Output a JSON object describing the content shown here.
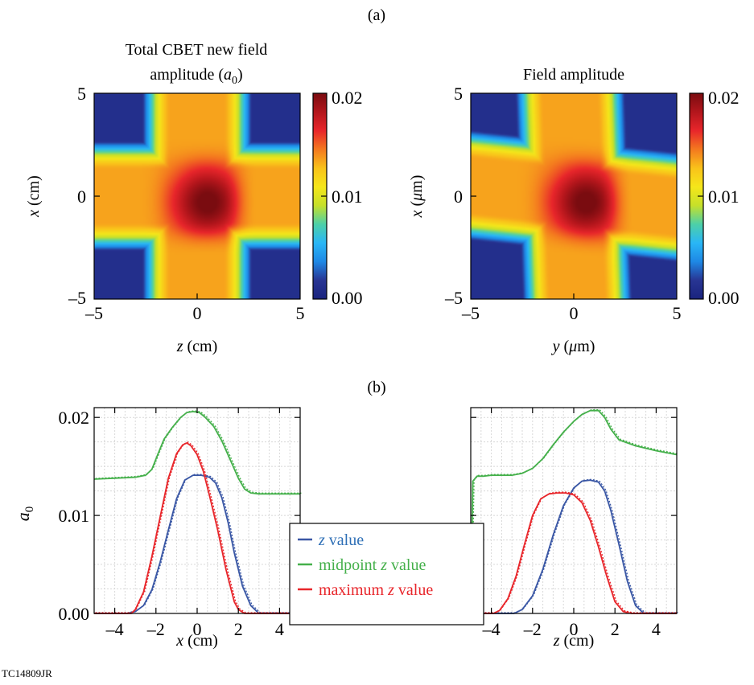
{
  "labels": {
    "part_a": "(a)",
    "part_b": "(b)",
    "figure_id": "TC14809JR"
  },
  "colors": {
    "blue": "#3a57a5",
    "green": "#45b04b",
    "red": "#e8262b",
    "legend_blue_text": "#2e6fb6"
  },
  "colormap": [
    "#1a237e",
    "#283593",
    "#1e88e5",
    "#29b6f6",
    "#4dd0a8",
    "#c6e02a",
    "#f5e61a",
    "#f9c21a",
    "#f4791f",
    "#e8262b",
    "#b3161c",
    "#7a0c10"
  ],
  "chart_data": [
    {
      "type": "heatmap",
      "title_line1": "Total CBET new field",
      "title_line2": "amplitude (",
      "title_var": "a",
      "title_sub": "0",
      "title_end": ")",
      "xlabel_var": "z",
      "xlabel_unit": " (cm)",
      "ylabel_var": "x",
      "ylabel_unit": " (cm)",
      "xlim": [
        -5,
        5
      ],
      "ylim": [
        -5,
        5
      ],
      "xticks": [
        "–5",
        "0",
        "5"
      ],
      "yticks": [
        "5",
        "0",
        "–5"
      ],
      "colorbar_ticks": [
        "0.02",
        "0.01",
        "0.00"
      ],
      "colorbar_range": [
        0.0,
        0.02
      ],
      "beam_a_angle_deg": 90,
      "beam_b_angle_deg": 0,
      "beam_width": 4.2,
      "beam_peak": 0.0135,
      "overlap_peak": 0.0195,
      "overlap_center": [
        0.5,
        -0.3
      ]
    },
    {
      "type": "heatmap",
      "title": "Field amplitude",
      "xlabel_var": "y",
      "xlabel_unit": " (",
      "xlabel_mu": "μ",
      "xlabel_end": "m)",
      "ylabel_var": "x",
      "ylabel_unit": " (",
      "ylabel_mu": "μ",
      "ylabel_end": "m)",
      "xlim": [
        -5,
        5
      ],
      "ylim": [
        -5,
        5
      ],
      "xticks": [
        "–5",
        "0",
        "5"
      ],
      "yticks": [
        "5",
        "0",
        "–5"
      ],
      "colorbar_ticks": [
        "0.02",
        "0.01",
        "0.00"
      ],
      "colorbar_range": [
        0.0,
        0.02
      ],
      "beam_a_angle_deg": 92,
      "beam_b_angle_deg": -6,
      "beam_width": 4.2,
      "beam_peak": 0.0135,
      "overlap_peak": 0.0195,
      "overlap_center": [
        0.6,
        -0.3
      ]
    },
    {
      "type": "line",
      "xlabel_var": "x",
      "xlabel_unit": " (cm)",
      "ylabel_var": "a",
      "ylabel_sub": "0",
      "xlim": [
        -5,
        5
      ],
      "ylim": [
        0,
        0.021
      ],
      "xticks": [
        -4,
        -2,
        0,
        2,
        4
      ],
      "xtick_labels": [
        "–4",
        "–2",
        "0",
        "2",
        "4"
      ],
      "yticks": [
        0,
        0.01,
        0.02
      ],
      "ytick_labels": [
        "0.00",
        "0.01",
        "0.02"
      ],
      "series": [
        {
          "color_key": "blue",
          "x": [
            -5,
            -3.4,
            -3.0,
            -2.6,
            -2.2,
            -1.8,
            -1.4,
            -1.0,
            -0.6,
            -0.2,
            0.2,
            0.6,
            0.9,
            1.2,
            1.5,
            1.8,
            2.2,
            2.6,
            3.0,
            5
          ],
          "y": [
            0.0,
            0.0,
            0.0002,
            0.0008,
            0.0024,
            0.0052,
            0.0085,
            0.0117,
            0.0136,
            0.0141,
            0.0141,
            0.0139,
            0.0133,
            0.0118,
            0.0093,
            0.0062,
            0.0028,
            0.0008,
            0.0,
            0.0
          ]
        },
        {
          "color_key": "red",
          "x": [
            -5,
            -3.2,
            -3.0,
            -2.6,
            -2.2,
            -1.8,
            -1.4,
            -1.0,
            -0.7,
            -0.5,
            -0.3,
            0.0,
            0.3,
            0.6,
            1.0,
            1.4,
            1.8,
            2.0,
            2.3,
            5
          ],
          "y": [
            0.0,
            0.0,
            0.0004,
            0.0022,
            0.0058,
            0.0098,
            0.0138,
            0.0163,
            0.0172,
            0.0174,
            0.0171,
            0.0162,
            0.0145,
            0.012,
            0.0085,
            0.0045,
            0.0012,
            0.0004,
            0.0,
            0.0
          ]
        },
        {
          "color_key": "green",
          "x": [
            -5,
            -4,
            -3,
            -2.5,
            -2.2,
            -1.9,
            -1.6,
            -1.2,
            -0.8,
            -0.5,
            -0.2,
            0.1,
            0.4,
            0.8,
            1.2,
            1.6,
            2.0,
            2.3,
            2.6,
            3.0,
            4,
            5
          ],
          "y": [
            0.0137,
            0.0138,
            0.0139,
            0.0141,
            0.0147,
            0.0163,
            0.0178,
            0.019,
            0.02,
            0.0205,
            0.0206,
            0.0205,
            0.02,
            0.0191,
            0.0176,
            0.0157,
            0.0138,
            0.0127,
            0.0123,
            0.0122,
            0.0122,
            0.0122
          ]
        }
      ]
    },
    {
      "type": "line",
      "xlabel_var": "z",
      "xlabel_unit": " (cm)",
      "xlim": [
        -5,
        5
      ],
      "ylim": [
        0,
        0.021
      ],
      "xticks": [
        -4,
        -2,
        0,
        2,
        4
      ],
      "xtick_labels": [
        "–4",
        "–2",
        "0",
        "2",
        "4"
      ],
      "series": [
        {
          "color_key": "blue",
          "x": [
            -5,
            -2.9,
            -2.5,
            -2.0,
            -1.5,
            -1.0,
            -0.5,
            0.0,
            0.4,
            0.8,
            1.2,
            1.5,
            1.8,
            2.2,
            2.6,
            3.0,
            3.4,
            5
          ],
          "y": [
            0.0,
            0.0,
            0.0004,
            0.0018,
            0.0045,
            0.008,
            0.011,
            0.0128,
            0.0135,
            0.0136,
            0.0134,
            0.0125,
            0.0105,
            0.007,
            0.0033,
            0.0008,
            0.0,
            0.0
          ]
        },
        {
          "color_key": "red",
          "x": [
            -5,
            -3.9,
            -3.6,
            -3.2,
            -2.8,
            -2.4,
            -2.0,
            -1.6,
            -1.2,
            -0.8,
            -0.4,
            0.0,
            0.4,
            0.8,
            1.2,
            1.6,
            2.0,
            2.4,
            2.8,
            5
          ],
          "y": [
            0.0,
            0.0,
            0.0003,
            0.0015,
            0.0038,
            0.007,
            0.01,
            0.0117,
            0.0122,
            0.0123,
            0.0123,
            0.0121,
            0.0113,
            0.0095,
            0.0068,
            0.0038,
            0.0012,
            0.0002,
            0.0,
            0.0
          ]
        },
        {
          "color_key": "green",
          "x": [
            -5,
            -4.9,
            -4.7,
            -4.4,
            -4.0,
            -3.0,
            -2.5,
            -2.0,
            -1.5,
            -1.0,
            -0.5,
            0.0,
            0.4,
            0.8,
            1.2,
            1.5,
            1.8,
            2.2,
            3.0,
            4.0,
            5
          ],
          "y": [
            0.001,
            0.0135,
            0.014,
            0.014,
            0.0141,
            0.0141,
            0.0143,
            0.0148,
            0.0158,
            0.0172,
            0.0185,
            0.0196,
            0.0203,
            0.0207,
            0.0207,
            0.02,
            0.0188,
            0.0177,
            0.0171,
            0.0166,
            0.0162
          ]
        }
      ]
    }
  ],
  "legend": {
    "items": [
      {
        "color_key": "legend_blue_text",
        "line_color_key": "blue",
        "var": "z",
        "text": " value"
      },
      {
        "color_key": "green",
        "line_color_key": "green",
        "prefix": "midpoint ",
        "var": "z",
        "text": " value"
      },
      {
        "color_key": "red",
        "line_color_key": "red",
        "prefix": "maximum ",
        "var": "z",
        "text": " value"
      }
    ]
  }
}
